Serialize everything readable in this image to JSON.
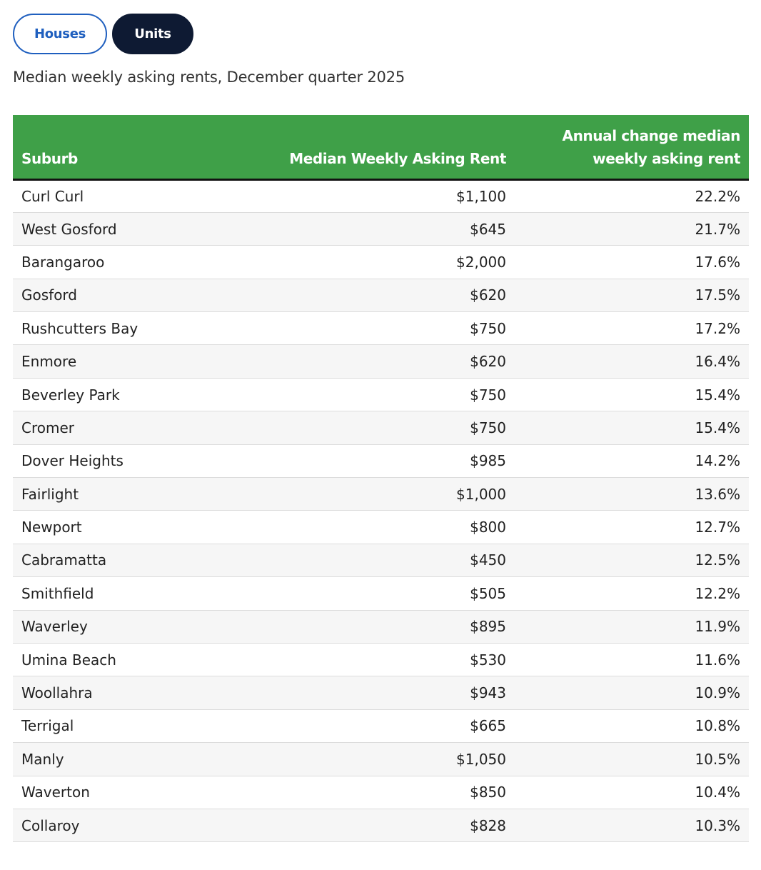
{
  "toggle": {
    "houses_label": "Houses",
    "units_label": "Units",
    "selected": "Units"
  },
  "caption": "Median weekly asking rents, December quarter 2025",
  "table": {
    "headers": {
      "suburb": "Suburb",
      "rent": "Median Weekly Asking Rent",
      "change": "Annual change median weekly asking rent"
    },
    "rows": [
      {
        "suburb": "Curl Curl",
        "rent": "$1,100",
        "change": "22.2%"
      },
      {
        "suburb": "West Gosford",
        "rent": "$645",
        "change": "21.7%"
      },
      {
        "suburb": "Barangaroo",
        "rent": "$2,000",
        "change": "17.6%"
      },
      {
        "suburb": "Gosford",
        "rent": "$620",
        "change": "17.5%"
      },
      {
        "suburb": "Rushcutters Bay",
        "rent": "$750",
        "change": "17.2%"
      },
      {
        "suburb": "Enmore",
        "rent": "$620",
        "change": "16.4%"
      },
      {
        "suburb": "Beverley Park",
        "rent": "$750",
        "change": "15.4%"
      },
      {
        "suburb": "Cromer",
        "rent": "$750",
        "change": "15.4%"
      },
      {
        "suburb": "Dover Heights",
        "rent": "$985",
        "change": "14.2%"
      },
      {
        "suburb": "Fairlight",
        "rent": "$1,000",
        "change": "13.6%"
      },
      {
        "suburb": "Newport",
        "rent": "$800",
        "change": "12.7%"
      },
      {
        "suburb": "Cabramatta",
        "rent": "$450",
        "change": "12.5%"
      },
      {
        "suburb": "Smithfield",
        "rent": "$505",
        "change": "12.2%"
      },
      {
        "suburb": "Waverley",
        "rent": "$895",
        "change": "11.9%"
      },
      {
        "suburb": "Umina Beach",
        "rent": "$530",
        "change": "11.6%"
      },
      {
        "suburb": "Woollahra",
        "rent": "$943",
        "change": "10.9%"
      },
      {
        "suburb": "Terrigal",
        "rent": "$665",
        "change": "10.8%"
      },
      {
        "suburb": "Manly",
        "rent": "$1,050",
        "change": "10.5%"
      },
      {
        "suburb": "Waverton",
        "rent": "$850",
        "change": "10.4%"
      },
      {
        "suburb": "Collaroy",
        "rent": "$828",
        "change": "10.3%"
      }
    ]
  },
  "colors": {
    "header_green": "#3fa048",
    "active_toggle": "#0e1a33",
    "inactive_toggle_border": "#1f5fbf"
  }
}
